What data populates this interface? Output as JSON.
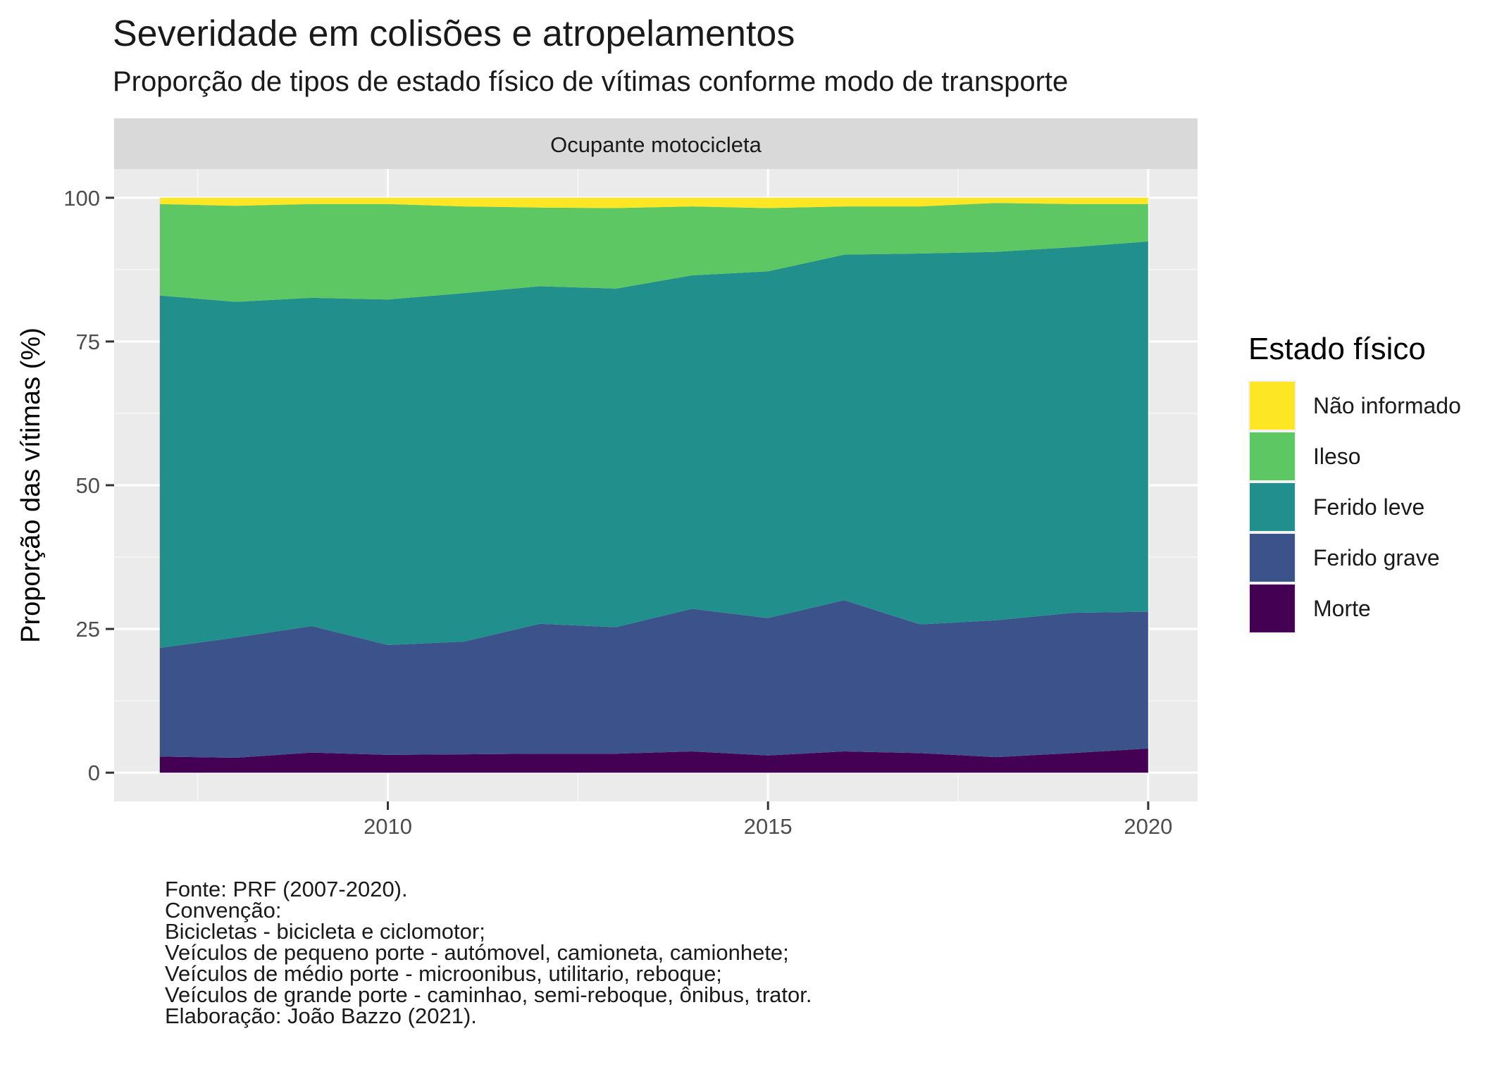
{
  "title": "Severidade em colisões e atropelamentos",
  "subtitle": "Proporção de tipos de estado físico de vítimas conforme modo de transporte",
  "caption": [
    "Fonte: PRF (2007-2020).",
    "Convenção:",
    "Bicicletas - bicicleta e ciclomotor;",
    "Veículos de pequeno porte - autómovel, camioneta, camionhete;",
    "Veículos de médio porte - microonibus, utilitario, reboque;",
    "Veículos de grande porte - caminhao, semi-reboque, ônibus, trator.",
    "Elaboração: João Bazzo (2021)."
  ],
  "chart_data": {
    "type": "area",
    "stacked": true,
    "facet": "Ocupante motocicleta",
    "ylabel": "Proporção das vítimas (%)",
    "xlabel": "",
    "x": [
      2007,
      2008,
      2009,
      2010,
      2011,
      2012,
      2013,
      2014,
      2015,
      2016,
      2017,
      2018,
      2019,
      2020
    ],
    "xlim": [
      2006.4,
      2020.65
    ],
    "ylim": [
      -5,
      105
    ],
    "xticks": [
      2010,
      2015,
      2020
    ],
    "xticks_minor": [
      2007.5,
      2012.5,
      2017.5
    ],
    "yticks": [
      0,
      25,
      50,
      75,
      100
    ],
    "grid": true,
    "legend": {
      "title": "Estado físico",
      "position": "right"
    },
    "series": [
      {
        "name": "Morte",
        "color": "#440154",
        "values": [
          2.8,
          2.6,
          3.5,
          3.1,
          3.2,
          3.3,
          3.3,
          3.7,
          3.0,
          3.7,
          3.4,
          2.7,
          3.4,
          4.2
        ]
      },
      {
        "name": "Ferido grave",
        "color": "#3B528B",
        "values": [
          18.9,
          20.9,
          22.0,
          19.1,
          19.6,
          22.6,
          22.0,
          24.8,
          23.9,
          26.3,
          22.4,
          23.8,
          24.4,
          23.8
        ]
      },
      {
        "name": "Ferido leve",
        "color": "#21908C",
        "values": [
          61.3,
          58.4,
          57.1,
          60.1,
          60.6,
          58.7,
          58.9,
          58.0,
          60.3,
          60.1,
          64.5,
          64.1,
          63.6,
          64.4
        ]
      },
      {
        "name": "Ileso",
        "color": "#5DC863",
        "values": [
          15.9,
          16.7,
          16.3,
          16.6,
          15.1,
          13.7,
          14.0,
          12.0,
          11.0,
          8.4,
          8.2,
          8.5,
          7.5,
          6.5
        ]
      },
      {
        "name": "Não informado",
        "color": "#FDE725",
        "values": [
          1.1,
          1.4,
          1.1,
          1.1,
          1.5,
          1.7,
          1.8,
          1.5,
          1.8,
          1.5,
          1.5,
          0.9,
          1.1,
          1.1
        ]
      }
    ]
  }
}
